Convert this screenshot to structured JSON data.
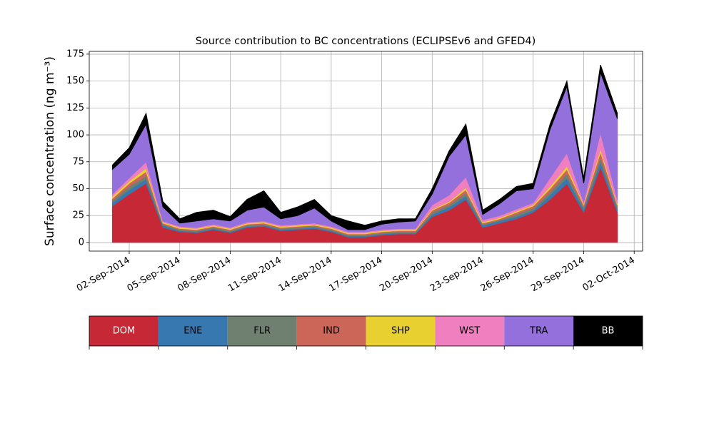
{
  "chart_data": {
    "type": "stacked_area",
    "title": "Source contribution to BC concentrations (ECLIPSEv6 and GFED4)",
    "ylabel": "Surface concentration (ng m⁻³)",
    "x": [
      "2014-09-01",
      "2014-09-02",
      "2014-09-03",
      "2014-09-04",
      "2014-09-05",
      "2014-09-06",
      "2014-09-07",
      "2014-09-08",
      "2014-09-09",
      "2014-09-10",
      "2014-09-11",
      "2014-09-12",
      "2014-09-13",
      "2014-09-14",
      "2014-09-15",
      "2014-09-16",
      "2014-09-17",
      "2014-09-18",
      "2014-09-19",
      "2014-09-20",
      "2014-09-21",
      "2014-09-22",
      "2014-09-23",
      "2014-09-24",
      "2014-09-25",
      "2014-09-26",
      "2014-09-27",
      "2014-09-28",
      "2014-09-29",
      "2014-09-30",
      "2014-10-01"
    ],
    "series": [
      {
        "name": "DOM",
        "color": "#c62836",
        "values": [
          34,
          45,
          55,
          14,
          10,
          9,
          12,
          9,
          14,
          15,
          11,
          12,
          13,
          10,
          5,
          5,
          7,
          8,
          8,
          24,
          30,
          40,
          14,
          18,
          22,
          28,
          40,
          55,
          28,
          70,
          28
        ]
      },
      {
        "name": "ENE",
        "color": "#3878b0",
        "values": [
          3,
          4,
          4,
          2,
          1,
          1,
          1,
          1,
          1,
          1,
          1,
          1,
          1,
          1,
          1,
          1,
          1,
          1,
          1,
          2,
          3,
          3,
          2,
          2,
          2,
          2,
          4,
          5,
          3,
          5,
          3
        ]
      },
      {
        "name": "FLR",
        "color": "#6f8070",
        "values": [
          2,
          3,
          3,
          1,
          1,
          1,
          1,
          1,
          1,
          1,
          1,
          1,
          1,
          1,
          1,
          1,
          1,
          1,
          1,
          2,
          2,
          3,
          1,
          1,
          2,
          2,
          3,
          4,
          2,
          4,
          2
        ]
      },
      {
        "name": "IND",
        "color": "#cc6658",
        "values": [
          2,
          3,
          4,
          1,
          1,
          1,
          1,
          1,
          1,
          1,
          1,
          1,
          1,
          1,
          1,
          1,
          1,
          1,
          1,
          2,
          2,
          3,
          1,
          1,
          2,
          2,
          3,
          4,
          2,
          5,
          2
        ]
      },
      {
        "name": "SHP",
        "color": "#e8d030",
        "values": [
          2,
          2,
          3,
          1,
          1,
          1,
          1,
          1,
          1,
          1,
          1,
          1,
          1,
          1,
          1,
          1,
          1,
          1,
          1,
          1,
          1,
          2,
          1,
          1,
          1,
          1,
          2,
          3,
          1,
          3,
          1
        ]
      },
      {
        "name": "WST",
        "color": "#f07fc0",
        "values": [
          2,
          3,
          6,
          1,
          1,
          1,
          1,
          1,
          1,
          1,
          1,
          1,
          1,
          1,
          1,
          1,
          1,
          1,
          1,
          4,
          6,
          10,
          2,
          2,
          2,
          2,
          8,
          12,
          2,
          15,
          4
        ]
      },
      {
        "name": "TRA",
        "color": "#9370db",
        "values": [
          23,
          22,
          35,
          13,
          3,
          6,
          5,
          6,
          11,
          13,
          6,
          8,
          14,
          5,
          2,
          2,
          5,
          6,
          7,
          10,
          36,
          39,
          5,
          11,
          17,
          13,
          45,
          62,
          17,
          56,
          75
        ]
      },
      {
        "name": "BB",
        "color": "#000000",
        "values": [
          4,
          6,
          10,
          5,
          4,
          8,
          8,
          4,
          10,
          15,
          6,
          8,
          8,
          5,
          8,
          4,
          3,
          3,
          2,
          5,
          5,
          10,
          4,
          4,
          4,
          5,
          5,
          5,
          5,
          7,
          5
        ]
      }
    ],
    "xlim": [
      "2014-08-30T15:00",
      "2014-10-02T12:00"
    ],
    "xticks": [
      {
        "value": "2014-09-02",
        "label": "02-Sep-2014"
      },
      {
        "value": "2014-09-05",
        "label": "05-Sep-2014"
      },
      {
        "value": "2014-09-08",
        "label": "08-Sep-2014"
      },
      {
        "value": "2014-09-11",
        "label": "11-Sep-2014"
      },
      {
        "value": "2014-09-14",
        "label": "14-Sep-2014"
      },
      {
        "value": "2014-09-17",
        "label": "17-Sep-2014"
      },
      {
        "value": "2014-09-20",
        "label": "20-Sep-2014"
      },
      {
        "value": "2014-09-23",
        "label": "23-Sep-2014"
      },
      {
        "value": "2014-09-26",
        "label": "26-Sep-2014"
      },
      {
        "value": "2014-09-29",
        "label": "29-Sep-2014"
      },
      {
        "value": "2014-10-02",
        "label": "02-Oct-2014"
      }
    ],
    "ylim": [
      -8,
      177.6
    ],
    "yticks": [
      0,
      25,
      50,
      75,
      100,
      125,
      150,
      175
    ],
    "grid": true
  }
}
